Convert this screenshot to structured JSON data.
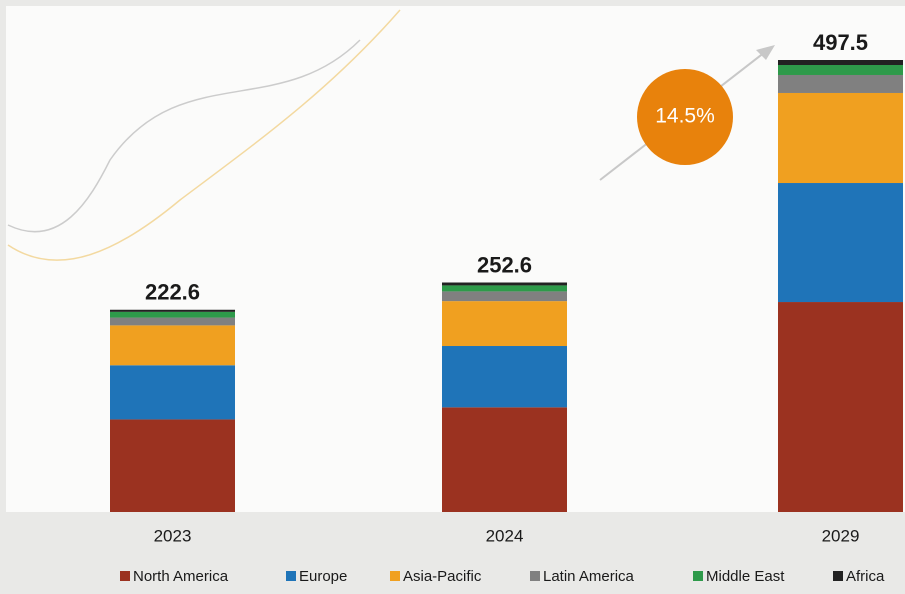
{
  "chart_data": {
    "type": "bar",
    "stacked": true,
    "categories": [
      "2023",
      "2024",
      "2029"
    ],
    "totals": [
      222.6,
      252.6,
      497.5
    ],
    "annotation": "14.5%",
    "series": [
      {
        "name": "North America",
        "color": "#9b3220",
        "values": [
          101.9,
          115.2,
          231.1
        ]
      },
      {
        "name": "Europe",
        "color": "#1f74b8",
        "values": [
          59.6,
          67.5,
          131.0
        ]
      },
      {
        "name": "Asia-Pacific",
        "color": "#f0a020",
        "values": [
          43.9,
          49.4,
          99.1
        ]
      },
      {
        "name": "Latin America",
        "color": "#808080",
        "values": [
          8.6,
          10.7,
          19.8
        ]
      },
      {
        "name": "Middle East",
        "color": "#2e9a4a",
        "values": [
          6.3,
          6.6,
          11.0
        ]
      },
      {
        "name": "Africa",
        "color": "#222222",
        "values": [
          2.3,
          3.2,
          5.5
        ]
      }
    ]
  }
}
